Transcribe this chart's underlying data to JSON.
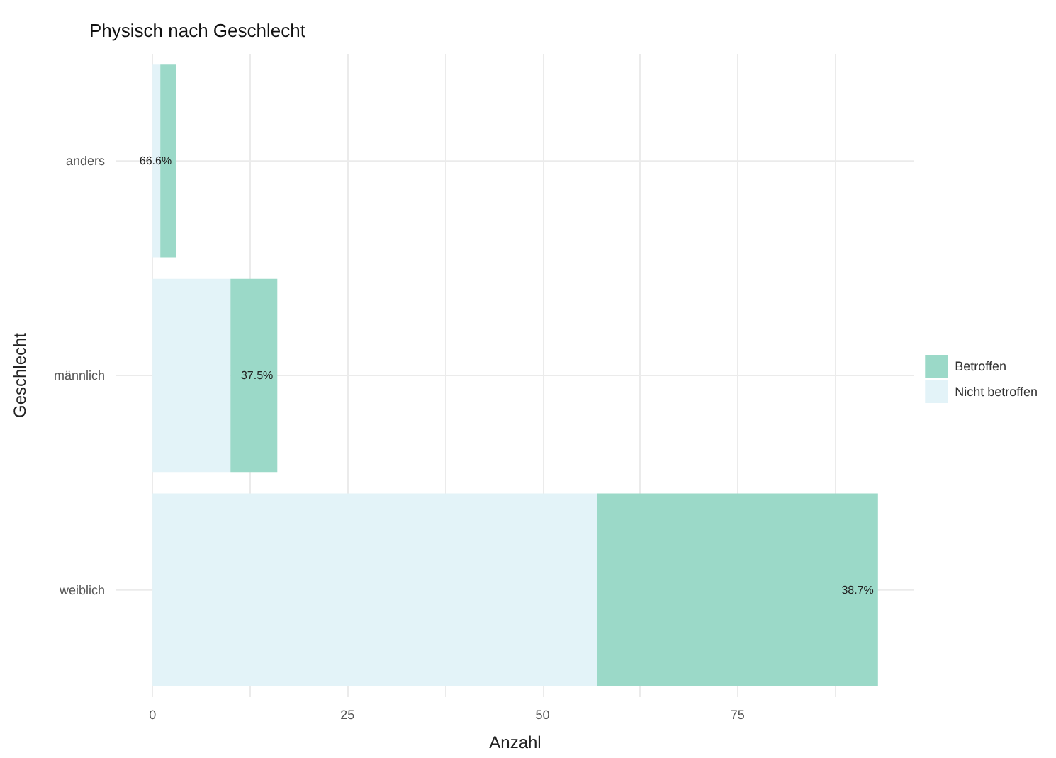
{
  "chart_data": {
    "type": "bar",
    "title": "Physisch nach Geschlecht",
    "xlabel": "Anzahl",
    "ylabel": "Geschlecht",
    "orientation": "horizontal",
    "stacked": true,
    "categories": [
      "anders",
      "männlich",
      "weiblich"
    ],
    "series": [
      {
        "name": "Nicht betroffen",
        "color": "#e3f3f8",
        "values": [
          1,
          10,
          57
        ]
      },
      {
        "name": "Betroffen",
        "color": "#9bd9c8",
        "values": [
          2,
          6,
          36
        ]
      }
    ],
    "annotations": [
      {
        "text": "66.6%",
        "x": 3,
        "y": "anders"
      },
      {
        "text": "37.5%",
        "x": 16,
        "y": "männlich"
      },
      {
        "text": "38.7%",
        "x": 93,
        "y": "weiblich"
      }
    ],
    "xlim": [
      -4.65,
      97.65
    ],
    "xticks": [
      0,
      {
        "value": 12.5,
        "label": null
      },
      25,
      {
        "value": 37.5,
        "label": null
      },
      50,
      {
        "value": 62.5,
        "label": null
      },
      75,
      {
        "value": 87.5,
        "label": null
      }
    ],
    "grid": true,
    "legend": "right"
  }
}
